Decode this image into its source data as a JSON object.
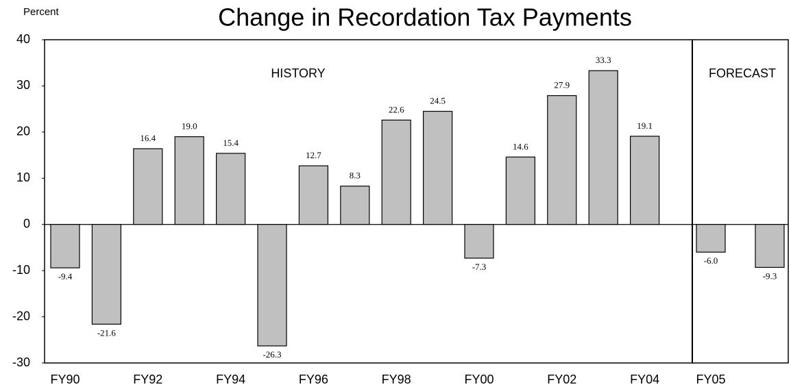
{
  "chart_data": {
    "type": "bar",
    "title": "Change in Recordation Tax Payments",
    "ylabel": "Percent",
    "annotations": [
      "HISTORY",
      "FORECAST"
    ],
    "categories": [
      "FY90",
      null,
      "FY92",
      null,
      "FY94",
      null,
      "FY96",
      null,
      "FY98",
      null,
      "FY00",
      null,
      "FY02",
      null,
      "FY04",
      "FY05",
      null
    ],
    "values": [
      -9.4,
      -21.6,
      16.4,
      19.0,
      15.4,
      -26.3,
      12.7,
      8.3,
      22.6,
      24.5,
      -7.3,
      14.6,
      27.9,
      33.3,
      19.1,
      -6.0,
      -9.3
    ],
    "value_labels": [
      "-9.4",
      "-21.6",
      "16.4",
      "19.0",
      "15.4",
      "-26.3",
      "12.7",
      "8.3",
      "22.6",
      "24.5",
      "-7.3",
      "14.6",
      "27.9",
      "33.3",
      "19.1",
      "-6.0",
      "-9.3"
    ],
    "color": "#c0c0c0",
    "ylim": [
      -30,
      40
    ],
    "yticks": [
      -30,
      -20,
      -10,
      0,
      10,
      20,
      30,
      40
    ],
    "grid": false
  }
}
